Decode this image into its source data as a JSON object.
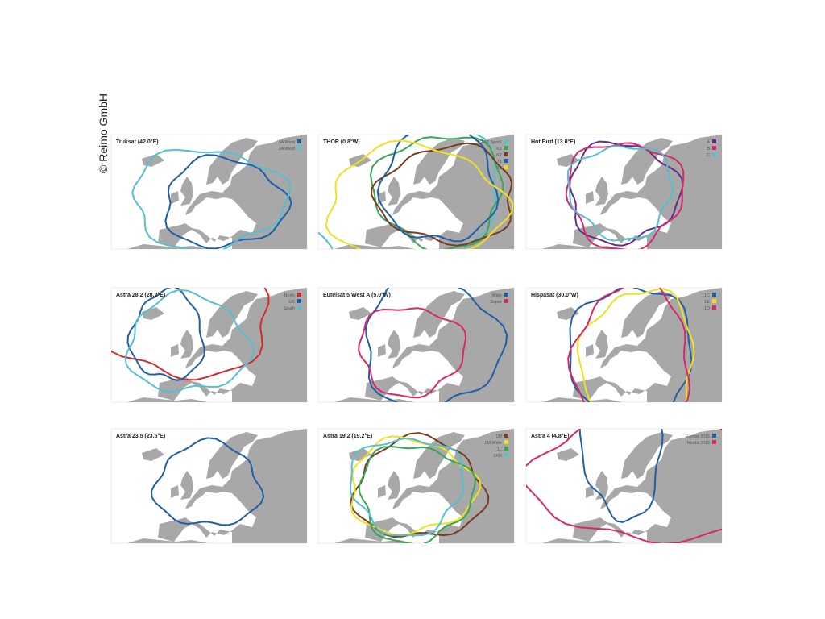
{
  "copyright": "© Reimo GmbH",
  "panels": [
    {
      "title": "Truksat (42.0°E)",
      "legend": [
        {
          "label": "3A West",
          "color": "#1f5fa8"
        },
        {
          "label": "2A West",
          "color": "#55c0d0"
        }
      ]
    },
    {
      "title": "THOR (0.8°W)",
      "legend": [
        {
          "label": "1D-02 Spot1",
          "color": "#55c0d0"
        },
        {
          "label": "K1",
          "color": "#3aa655"
        },
        {
          "label": "K2",
          "color": "#7a3b1e"
        },
        {
          "label": "T1",
          "color": "#1f5fa8"
        },
        {
          "label": "T2",
          "color": "#f0e020"
        }
      ]
    },
    {
      "title": "Hot Bird (13.0°E)",
      "legend": [
        {
          "label": "A",
          "color": "#6a2a8a"
        },
        {
          "label": "B",
          "color": "#d8286a"
        },
        {
          "label": "C",
          "color": "#55c0d0"
        }
      ]
    },
    {
      "title": "Astra 28.2 (28.2°E)",
      "legend": [
        {
          "label": "North",
          "color": "#d62a2a"
        },
        {
          "label": "UK",
          "color": "#1f5fa8"
        },
        {
          "label": "South",
          "color": "#55c0d0"
        }
      ]
    },
    {
      "title": "Eutelsat 5 West A (5.0°W)",
      "legend": [
        {
          "label": "Wide",
          "color": "#1f5fa8"
        },
        {
          "label": "Super",
          "color": "#d8286a"
        }
      ]
    },
    {
      "title": "Hispasat (30.0°W)",
      "legend": [
        {
          "label": "1C",
          "color": "#1f5fa8"
        },
        {
          "label": "1E",
          "color": "#f0e020"
        },
        {
          "label": "1D",
          "color": "#d8286a"
        }
      ]
    },
    {
      "title": "Astra 23.5 (23.5°E)",
      "legend": []
    },
    {
      "title": "Astra 19.2 (19.2°E)",
      "legend": [
        {
          "label": "1M",
          "color": "#7a3b1e"
        },
        {
          "label": "1M Wide",
          "color": "#f0e020"
        },
        {
          "label": "1L",
          "color": "#3aa655"
        },
        {
          "label": "1KR",
          "color": "#55c0d0"
        }
      ]
    },
    {
      "title": "Astra 4 (4.8°E)",
      "legend": [
        {
          "label": "Europe BSS",
          "color": "#1f5fa8"
        },
        {
          "label": "Nordic BSS",
          "color": "#d8286a"
        }
      ]
    }
  ]
}
